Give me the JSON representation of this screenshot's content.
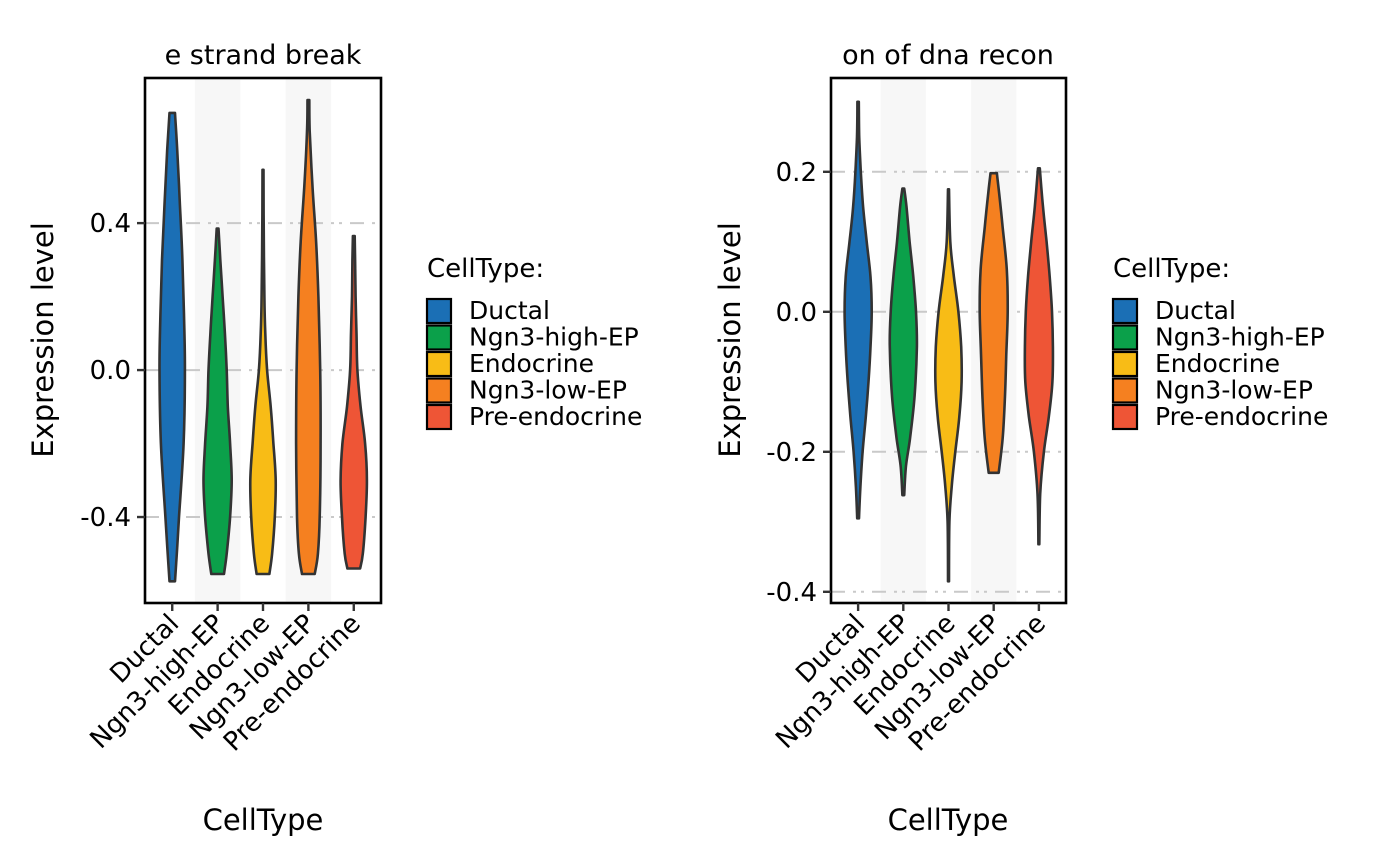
{
  "chart_data": [
    {
      "type": "violin",
      "title": "e strand break",
      "xlabel": "CellType",
      "ylabel": "Expression level",
      "ylim": [
        -0.634,
        0.795
      ],
      "yticks": [
        -0.4,
        0.0,
        0.4
      ],
      "ytick_labels": [
        "-0.4",
        "0.0",
        "0.4"
      ],
      "grid": "dashed horizontal at ticks",
      "categories": [
        "Ductal",
        "Ngn3-high-EP",
        "Endocrine",
        "Ngn3-low-EP",
        "Pre-endocrine"
      ],
      "shaded_bands": [
        "Ngn3-high-EP",
        "Ngn3-low-EP"
      ],
      "legend": {
        "title": "CellType:",
        "placement": "right"
      },
      "series": [
        {
          "name": "Ductal",
          "color": "#1B6FB5",
          "min": -0.575,
          "max": 0.7,
          "profile": [
            [
              -0.575,
              0.12
            ],
            [
              -0.5,
              0.2
            ],
            [
              -0.4,
              0.3
            ],
            [
              -0.2,
              0.5
            ],
            [
              0.0,
              0.56
            ],
            [
              0.15,
              0.52
            ],
            [
              0.3,
              0.45
            ],
            [
              0.45,
              0.34
            ],
            [
              0.6,
              0.22
            ],
            [
              0.7,
              0.12
            ]
          ]
        },
        {
          "name": "Ngn3-high-EP",
          "color": "#0BA04A",
          "min": -0.555,
          "max": 0.385,
          "profile": [
            [
              -0.555,
              0.28
            ],
            [
              -0.5,
              0.4
            ],
            [
              -0.4,
              0.55
            ],
            [
              -0.3,
              0.62
            ],
            [
              -0.2,
              0.55
            ],
            [
              -0.1,
              0.45
            ],
            [
              0.0,
              0.4
            ],
            [
              0.1,
              0.32
            ],
            [
              0.2,
              0.22
            ],
            [
              0.3,
              0.12
            ],
            [
              0.385,
              0.04
            ]
          ]
        },
        {
          "name": "Endocrine",
          "color": "#F8BC16",
          "min": -0.555,
          "max": 0.545,
          "profile": [
            [
              -0.555,
              0.28
            ],
            [
              -0.5,
              0.4
            ],
            [
              -0.4,
              0.52
            ],
            [
              -0.3,
              0.56
            ],
            [
              -0.2,
              0.46
            ],
            [
              -0.1,
              0.34
            ],
            [
              0.0,
              0.18
            ],
            [
              0.1,
              0.1
            ],
            [
              0.2,
              0.06
            ],
            [
              0.4,
              0.03
            ],
            [
              0.545,
              0.02
            ]
          ]
        },
        {
          "name": "Ngn3-low-EP",
          "color": "#F58020",
          "min": -0.555,
          "max": 0.735,
          "profile": [
            [
              -0.555,
              0.28
            ],
            [
              -0.5,
              0.42
            ],
            [
              -0.4,
              0.5
            ],
            [
              -0.2,
              0.54
            ],
            [
              0.0,
              0.52
            ],
            [
              0.2,
              0.44
            ],
            [
              0.35,
              0.34
            ],
            [
              0.5,
              0.18
            ],
            [
              0.65,
              0.06
            ],
            [
              0.735,
              0.04
            ]
          ]
        },
        {
          "name": "Pre-endocrine",
          "color": "#EE5536",
          "min": -0.54,
          "max": 0.365,
          "profile": [
            [
              -0.54,
              0.28
            ],
            [
              -0.5,
              0.4
            ],
            [
              -0.4,
              0.52
            ],
            [
              -0.3,
              0.58
            ],
            [
              -0.2,
              0.5
            ],
            [
              -0.1,
              0.3
            ],
            [
              0.0,
              0.16
            ],
            [
              0.1,
              0.12
            ],
            [
              0.2,
              0.08
            ],
            [
              0.3,
              0.06
            ],
            [
              0.365,
              0.04
            ]
          ]
        }
      ]
    },
    {
      "type": "violin",
      "title": "on of dna recon",
      "xlabel": "CellType",
      "ylabel": "Expression level",
      "ylim": [
        -0.416,
        0.334
      ],
      "yticks": [
        -0.4,
        -0.2,
        0.0,
        0.2
      ],
      "ytick_labels": [
        "-0.4",
        "-0.2",
        "0.0",
        "0.2"
      ],
      "grid": "dashed horizontal at ticks",
      "categories": [
        "Ductal",
        "Ngn3-high-EP",
        "Endocrine",
        "Ngn3-low-EP",
        "Pre-endocrine"
      ],
      "shaded_bands": [
        "Ngn3-high-EP",
        "Ngn3-low-EP"
      ],
      "legend": {
        "title": "CellType:",
        "placement": "right"
      },
      "series": [
        {
          "name": "Ductal",
          "color": "#1B6FB5",
          "min": -0.295,
          "max": 0.3,
          "profile": [
            [
              -0.295,
              0.04
            ],
            [
              -0.25,
              0.1
            ],
            [
              -0.2,
              0.2
            ],
            [
              -0.15,
              0.34
            ],
            [
              -0.1,
              0.46
            ],
            [
              -0.05,
              0.55
            ],
            [
              0.0,
              0.6
            ],
            [
              0.05,
              0.55
            ],
            [
              0.1,
              0.38
            ],
            [
              0.15,
              0.22
            ],
            [
              0.2,
              0.12
            ],
            [
              0.25,
              0.05
            ],
            [
              0.3,
              0.03
            ]
          ]
        },
        {
          "name": "Ngn3-high-EP",
          "color": "#0BA04A",
          "min": -0.262,
          "max": 0.176,
          "profile": [
            [
              -0.262,
              0.04
            ],
            [
              -0.22,
              0.12
            ],
            [
              -0.18,
              0.3
            ],
            [
              -0.12,
              0.5
            ],
            [
              -0.05,
              0.6
            ],
            [
              0.0,
              0.56
            ],
            [
              0.05,
              0.44
            ],
            [
              0.1,
              0.28
            ],
            [
              0.15,
              0.14
            ],
            [
              0.176,
              0.04
            ]
          ]
        },
        {
          "name": "Endocrine",
          "color": "#F8BC16",
          "min": -0.385,
          "max": 0.175,
          "profile": [
            [
              -0.385,
              0.02
            ],
            [
              -0.3,
              0.04
            ],
            [
              -0.25,
              0.14
            ],
            [
              -0.2,
              0.3
            ],
            [
              -0.15,
              0.48
            ],
            [
              -0.1,
              0.58
            ],
            [
              -0.05,
              0.56
            ],
            [
              0.0,
              0.44
            ],
            [
              0.05,
              0.24
            ],
            [
              0.1,
              0.08
            ],
            [
              0.175,
              0.02
            ]
          ]
        },
        {
          "name": "Ngn3-low-EP",
          "color": "#F58020",
          "min": -0.23,
          "max": 0.198,
          "profile": [
            [
              -0.23,
              0.22
            ],
            [
              -0.18,
              0.4
            ],
            [
              -0.12,
              0.5
            ],
            [
              -0.06,
              0.56
            ],
            [
              0.0,
              0.62
            ],
            [
              0.06,
              0.58
            ],
            [
              0.12,
              0.4
            ],
            [
              0.17,
              0.24
            ],
            [
              0.198,
              0.14
            ]
          ]
        },
        {
          "name": "Pre-endocrine",
          "color": "#EE5536",
          "min": -0.332,
          "max": 0.205,
          "profile": [
            [
              -0.332,
              0.02
            ],
            [
              -0.26,
              0.06
            ],
            [
              -0.2,
              0.22
            ],
            [
              -0.15,
              0.44
            ],
            [
              -0.1,
              0.6
            ],
            [
              -0.05,
              0.62
            ],
            [
              0.0,
              0.58
            ],
            [
              0.05,
              0.48
            ],
            [
              0.1,
              0.34
            ],
            [
              0.15,
              0.18
            ],
            [
              0.205,
              0.04
            ]
          ]
        }
      ]
    }
  ]
}
